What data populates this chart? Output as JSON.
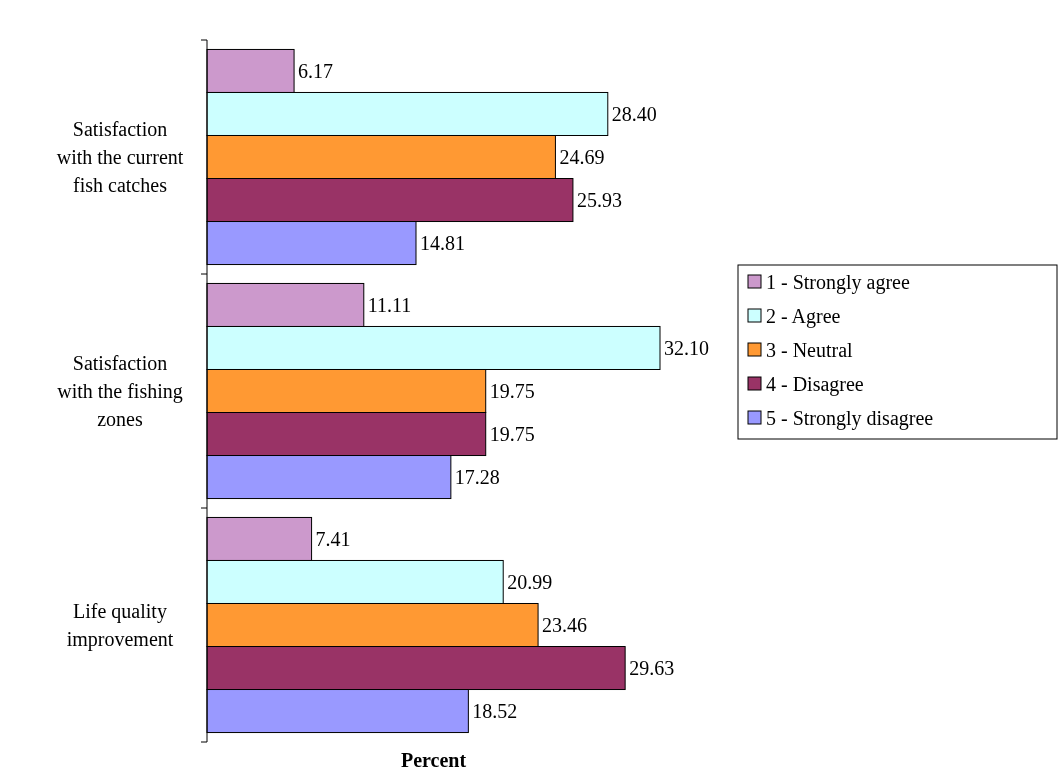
{
  "chart_data": {
    "type": "bar",
    "orientation": "horizontal",
    "xlabel": "Percent",
    "categories": [
      "Satisfaction with the current fish catches",
      "Satisfaction with the fishing zones",
      "Life quality improvement"
    ],
    "series": [
      {
        "name": "1 - Strongly agree",
        "color": "#cc99cc",
        "values": [
          6.17,
          11.11,
          7.41
        ],
        "value_labels": [
          "6.17",
          "11.11",
          "7.41"
        ]
      },
      {
        "name": "2 - Agree",
        "color": "#ccffff",
        "values": [
          28.4,
          32.1,
          20.99
        ],
        "value_labels": [
          "28.40",
          "32.10",
          "20.99"
        ]
      },
      {
        "name": "3 - Neutral",
        "color": "#ff9933",
        "values": [
          24.69,
          19.75,
          23.46
        ],
        "value_labels": [
          "24.69",
          "19.75",
          "23.46"
        ]
      },
      {
        "name": "4 - Disagree",
        "color": "#993366",
        "values": [
          25.93,
          19.75,
          29.63
        ],
        "value_labels": [
          "25.93",
          "19.75",
          "29.63"
        ]
      },
      {
        "name": "5 - Strongly disagree",
        "color": "#9999ff",
        "values": [
          14.81,
          17.28,
          18.52
        ],
        "value_labels": [
          "14.81",
          "17.28",
          "18.52"
        ]
      }
    ],
    "legend": "right"
  }
}
